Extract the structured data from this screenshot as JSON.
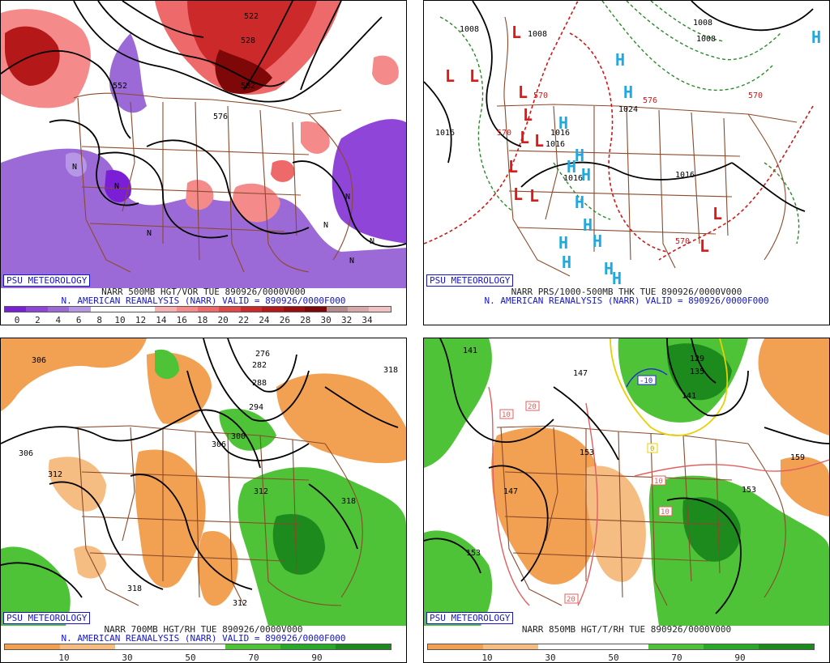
{
  "credit": "PSU METEOROLOGY",
  "panels": {
    "top_left": {
      "title_line1": "NARR 500MB HGT/VOR TUE 890926/0000V000",
      "title_line2": "N. AMERICAN REANALYSIS (NARR) VALID = 890926/0000F000",
      "contour_labels": [
        "552",
        "528",
        "576",
        "522",
        "582"
      ],
      "centers": [
        "N",
        "N",
        "N",
        "N",
        "N",
        "N",
        "N"
      ],
      "colorbar": {
        "labels": [
          "0",
          "2",
          "4",
          "6",
          "8",
          "10",
          "12",
          "14",
          "16",
          "18",
          "20",
          "22",
          "24",
          "26",
          "28",
          "30",
          "32",
          "34"
        ],
        "colors": [
          "#7b1fd6",
          "#8f45d8",
          "#9b6ad7",
          "#b597e6",
          "#ffffff",
          "#ffffff",
          "#ffffff",
          "#f7b0b0",
          "#f48a8a",
          "#ee6a6a",
          "#e04848",
          "#cc2a2a",
          "#b51818",
          "#9a0e0e",
          "#7e0707",
          "#b58a8a",
          "#d6a8a8",
          "#f1c2c2"
        ]
      }
    },
    "top_right": {
      "title_line1": "NARR PRS/1000-500MB THK TUE 890926/0000V000",
      "title_line2": "N. AMERICAN REANALYSIS (NARR) VALID = 890926/0000F000",
      "pressure_labels": [
        "1008",
        "1008",
        "1008",
        "1008",
        "1016",
        "1016",
        "1016",
        "1016",
        "1016",
        "1024"
      ],
      "thickness_labels": [
        "570",
        "570",
        "576",
        "570",
        "570"
      ],
      "low_label": "L",
      "high_label": "H"
    },
    "bottom_left": {
      "title_line1": "NARR 700MB HGT/RH TUE 890926/0000V000",
      "title_line2": "N. AMERICAN REANALYSIS (NARR) VALID = 890926/0000F000",
      "contour_labels": [
        "306",
        "306",
        "312",
        "318",
        "276",
        "282",
        "288",
        "294",
        "300",
        "306",
        "312",
        "318",
        "318",
        "312"
      ],
      "colorbar": {
        "labels": [
          "10",
          "30",
          "50",
          "70",
          "90"
        ],
        "colors": [
          "#f2a052",
          "#f6bd82",
          "#ffffff",
          "#ffffff",
          "#4fc338",
          "#2aa82a",
          "#1c8a1c"
        ]
      }
    },
    "bottom_right": {
      "title_line1": "NARR 850MB HGT/T/RH TUE 890926/0000V000",
      "title_line2": "",
      "contour_labels": [
        "141",
        "147",
        "153",
        "147",
        "153",
        "159",
        "153",
        "129",
        "135",
        "141"
      ],
      "temp_labels": [
        "10",
        "20",
        "10",
        "10",
        "20",
        "-10",
        "0"
      ],
      "colorbar": {
        "labels": [
          "10",
          "30",
          "50",
          "70",
          "90"
        ],
        "colors": [
          "#f2a052",
          "#f6bd82",
          "#ffffff",
          "#ffffff",
          "#4fc338",
          "#2aa82a",
          "#1c8a1c"
        ]
      }
    }
  }
}
